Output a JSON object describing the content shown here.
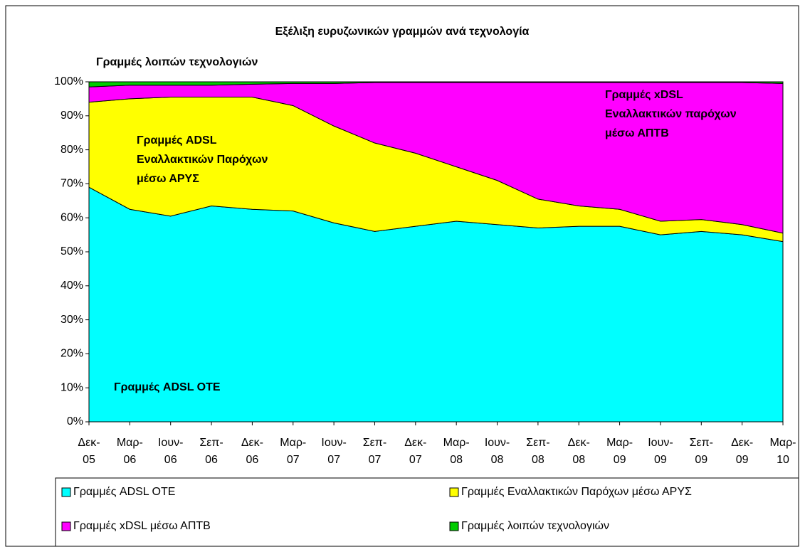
{
  "chart_data": {
    "type": "stacked_area",
    "title": "Εξέλιξη ευρυζωνικών γραμμών ανά τεχνολογία",
    "categories": [
      "Δεκ-05",
      "Μαρ-06",
      "Ιουν-06",
      "Σεπ-06",
      "Δεκ-06",
      "Μαρ-07",
      "Ιουν-07",
      "Σεπ-07",
      "Δεκ-07",
      "Μαρ-08",
      "Ιουν-08",
      "Σεπ-08",
      "Δεκ-08",
      "Μαρ-09",
      "Ιουν-09",
      "Σεπ-09",
      "Δεκ-09",
      "Μαρ-10"
    ],
    "series": [
      {
        "name": "Γραμμές ADSL ΟΤΕ",
        "color": "#00ffff",
        "values": [
          69,
          62.5,
          60.5,
          63.5,
          62.5,
          62,
          58.5,
          56,
          57.5,
          59,
          58,
          57,
          57.5,
          57.5,
          55,
          56,
          55,
          53
        ]
      },
      {
        "name": "Γραμμές Εναλλακτικών Παρόχων μέσω ΑΡΥΣ",
        "color": "#ffff00",
        "values": [
          25,
          32.5,
          35,
          32,
          33,
          31,
          28.5,
          26,
          21.5,
          16,
          13,
          8.5,
          6,
          5,
          4,
          3.5,
          3,
          2.5
        ]
      },
      {
        "name": "Γραμμές xDSL μέσω ΑΠΤΒ",
        "color": "#ff00ff",
        "values": [
          4.5,
          4,
          3.5,
          3.5,
          3.8,
          6.5,
          12.5,
          17.8,
          20.8,
          24.8,
          28.8,
          34.3,
          36.3,
          37.3,
          40.8,
          40.3,
          41.8,
          44
        ]
      },
      {
        "name": "Γραμμές λοιπών τεχνολογιών",
        "color": "#00cc00",
        "values": [
          1.5,
          1,
          1,
          1,
          0.7,
          0.5,
          0.5,
          0.2,
          0.2,
          0.2,
          0.2,
          0.2,
          0.2,
          0.2,
          0.2,
          0.2,
          0.2,
          0.5
        ]
      }
    ],
    "ylim": [
      0,
      100
    ],
    "yticks": [
      {
        "value": 0,
        "label": "0%"
      },
      {
        "value": 10,
        "label": "10%"
      },
      {
        "value": 20,
        "label": "20%"
      },
      {
        "value": 30,
        "label": "30%"
      },
      {
        "value": 40,
        "label": "40%"
      },
      {
        "value": 50,
        "label": "50%"
      },
      {
        "value": 60,
        "label": "60%"
      },
      {
        "value": 70,
        "label": "70%"
      },
      {
        "value": 80,
        "label": "80%"
      },
      {
        "value": 90,
        "label": "90%"
      },
      {
        "value": 100,
        "label": "100%"
      }
    ],
    "annotations": [
      {
        "lines": [
          "Γραμμές λοιπών τεχνολογιών"
        ]
      },
      {
        "lines": [
          "Γραμμές ADSL",
          "Εναλλακτικών Παρόχων",
          "μέσω ΑΡΥΣ"
        ]
      },
      {
        "lines": [
          "Γραμμές xDSL",
          "Εναλλακτικών παρόχων",
          "μέσω ΑΠΤΒ"
        ]
      },
      {
        "lines": [
          "Γραμμές ADSL ΟΤΕ"
        ]
      }
    ]
  }
}
